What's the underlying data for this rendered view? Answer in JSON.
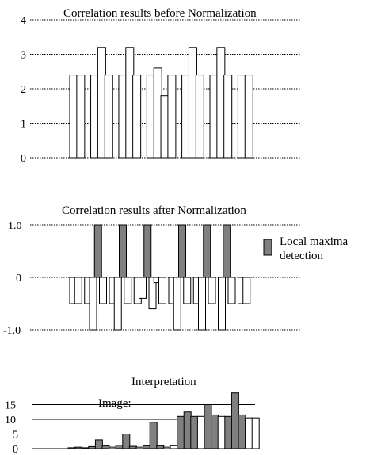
{
  "chart_data": [
    {
      "type": "bar",
      "title": "Correlation results before Normalization",
      "ylim": [
        0,
        4
      ],
      "yticks": [
        0,
        1,
        2,
        3,
        4
      ],
      "grid": "dotted horizontal",
      "values": [
        2.4,
        2.4,
        0,
        2.4,
        3.2,
        2.4,
        0,
        2.4,
        3.2,
        2.4,
        0,
        2.4,
        2.6,
        1.8,
        2.4,
        0,
        2.4,
        3.2,
        2.4,
        0,
        2.4,
        3.2,
        2.4,
        0,
        2.4,
        2.4
      ],
      "bar_colors": [
        "#ffffff"
      ]
    },
    {
      "type": "bar",
      "title": "Correlation results after Normalization",
      "ylim": [
        -1.0,
        1.0
      ],
      "yticks": [
        "-1.0",
        "0",
        "1.0"
      ],
      "grid": "dotted horizontal",
      "values": [
        -0.5,
        -0.5,
        0,
        -0.5,
        -1.0,
        1.0,
        -0.5,
        0,
        -0.5,
        -1.0,
        1.0,
        -0.5,
        0,
        -0.5,
        -0.4,
        1.0,
        -0.6,
        -0.1,
        -0.5,
        0,
        -0.5,
        -1.0,
        1.0,
        -0.5,
        0,
        -0.5,
        -1.0,
        1.0,
        -0.5,
        0,
        -1.0,
        1.0,
        -0.5,
        0,
        -0.5,
        -0.5
      ],
      "highlight": [
        false,
        false,
        false,
        false,
        false,
        true,
        false,
        false,
        false,
        false,
        true,
        false,
        false,
        false,
        false,
        true,
        false,
        false,
        false,
        false,
        false,
        false,
        true,
        false,
        false,
        false,
        false,
        true,
        false,
        false,
        false,
        true,
        false,
        false,
        false,
        false
      ],
      "legend": {
        "label_line1": "Local maxima",
        "label_line2": "detection",
        "color": "#808080",
        "position": "right"
      }
    },
    {
      "type": "bar",
      "title": "Interpretation",
      "annotation": "Image:",
      "ylim": [
        0,
        20
      ],
      "yticks": [
        0,
        5,
        10,
        15
      ],
      "grid": "solid horizontal",
      "values": [
        0.3,
        0.5,
        0.3,
        0.7,
        3.0,
        1.0,
        0.5,
        1.2,
        5.0,
        0.8,
        0.5,
        1.0,
        9.0,
        1.0,
        0.5,
        1.0,
        11.0,
        12.5,
        11.0,
        11.0,
        15.0,
        11.5,
        11.0,
        11.0,
        19.0,
        11.5,
        10.5,
        10.5
      ],
      "fills": [
        "w",
        "g",
        "g",
        "g",
        "g",
        "g",
        "w",
        "g",
        "g",
        "g",
        "w",
        "g",
        "g",
        "g",
        "w",
        "w",
        "g",
        "g",
        "g",
        "w",
        "g",
        "g",
        "w",
        "g",
        "g",
        "g",
        "w",
        "w"
      ],
      "colors": {
        "gray": "#808080",
        "white": "#ffffff"
      }
    }
  ]
}
